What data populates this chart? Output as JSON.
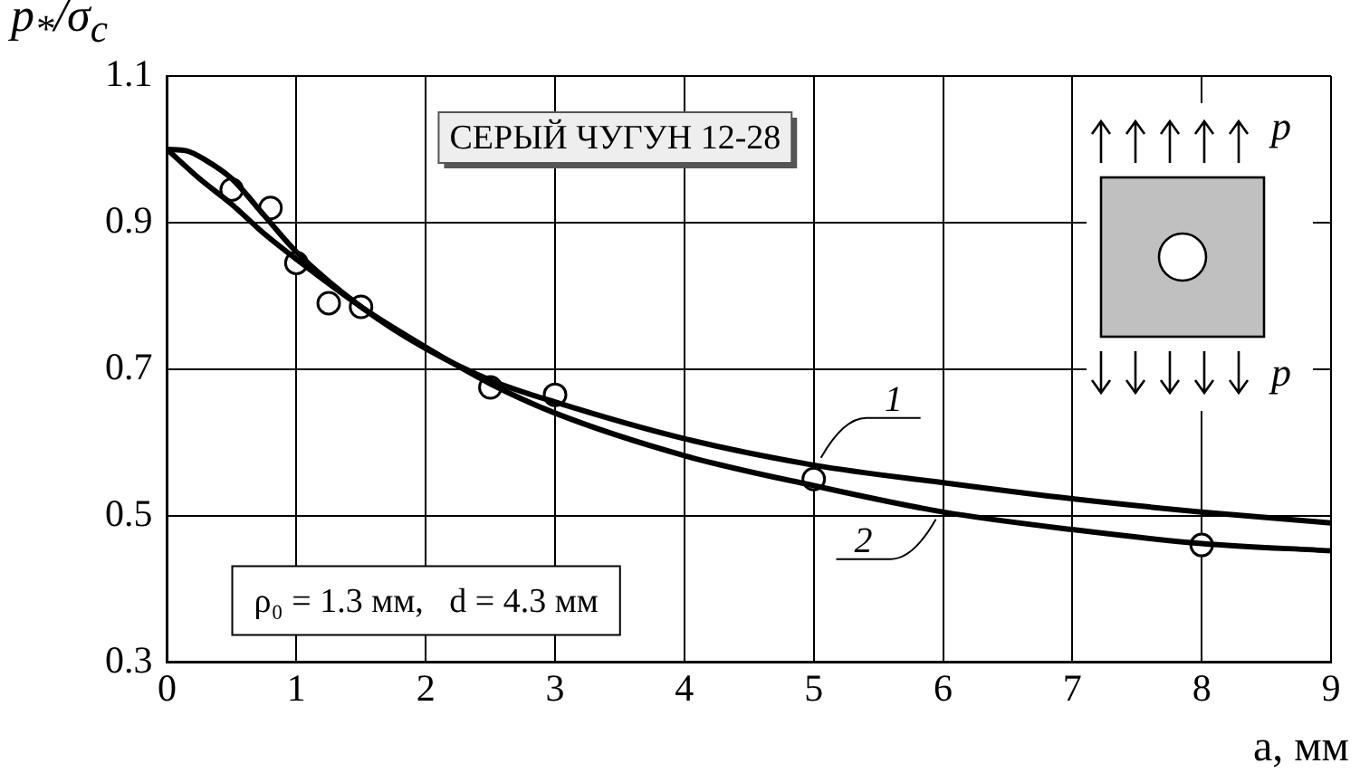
{
  "chart_data": {
    "type": "line",
    "title": "СЕРЫЙ ЧУГУН 12-28",
    "xlabel": "a, мм",
    "ylabel": "p$_{*}$/σ$_{c}$",
    "annotations": [
      "ρ₀ = 1.3 мм,   d = 4.3 мм",
      "p",
      "p"
    ],
    "series": [
      {
        "name": "1",
        "color": "#000000",
        "x": [
          0,
          0.15,
          0.3,
          0.5,
          0.75,
          1,
          1.5,
          2,
          2.5,
          3,
          4,
          5,
          6,
          7,
          8,
          9
        ],
        "values": [
          1.0,
          0.998,
          0.985,
          0.96,
          0.91,
          0.86,
          0.785,
          0.728,
          0.685,
          0.655,
          0.605,
          0.569,
          0.545,
          0.523,
          0.505,
          0.49
        ]
      },
      {
        "name": "2",
        "color": "#000000",
        "x": [
          0,
          0.25,
          0.5,
          0.75,
          1,
          1.5,
          2,
          2.5,
          3,
          4,
          5,
          6,
          7,
          8,
          9
        ],
        "values": [
          1.0,
          0.96,
          0.925,
          0.885,
          0.85,
          0.785,
          0.73,
          0.68,
          0.64,
          0.582,
          0.541,
          0.505,
          0.481,
          0.462,
          0.452
        ]
      },
      {
        "type": "scatter",
        "color": "#000000",
        "marker": "circle",
        "x": [
          0.5,
          0.8,
          1,
          1.25,
          1.5,
          2.5,
          3,
          5,
          8
        ],
        "values": [
          0.945,
          0.92,
          0.845,
          0.79,
          0.785,
          0.675,
          0.665,
          0.55,
          0.46
        ]
      }
    ],
    "xlim": [
      0,
      9
    ],
    "xticks": [
      0,
      1,
      2,
      3,
      4,
      5,
      6,
      7,
      8,
      9
    ],
    "ylim": [
      0.3,
      1.1
    ],
    "yticks": [
      0.3,
      0.5,
      0.7,
      0.9,
      1.1
    ],
    "grid": true,
    "legend": false,
    "line_style": "solid"
  }
}
